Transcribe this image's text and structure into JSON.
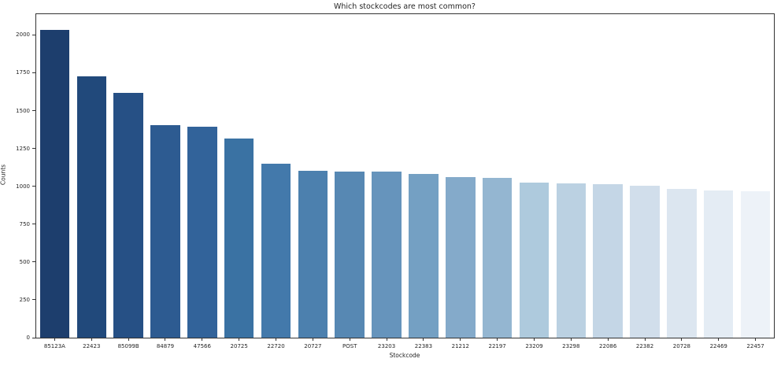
{
  "chart_data": {
    "type": "bar",
    "title": "Which stockcodes are most common?",
    "xlabel": "Stockcode",
    "ylabel": "Counts",
    "categories": [
      "85123A",
      "22423",
      "85099B",
      "84879",
      "47566",
      "20725",
      "22720",
      "20727",
      "POST",
      "23203",
      "22383",
      "21212",
      "22197",
      "23209",
      "23298",
      "22086",
      "22382",
      "20728",
      "22469",
      "22457"
    ],
    "values": [
      2035,
      1725,
      1618,
      1405,
      1395,
      1316,
      1151,
      1103,
      1097,
      1095,
      1082,
      1060,
      1056,
      1026,
      1021,
      1016,
      1004,
      982,
      974,
      969
    ],
    "bar_colors": [
      "#1d3e6d",
      "#21497b",
      "#265085",
      "#2d5b91",
      "#32639a",
      "#3a72a3",
      "#4379ab",
      "#4c80ae",
      "#5788b3",
      "#6694bc",
      "#74a0c3",
      "#84aaca",
      "#94b6d1",
      "#aecadd",
      "#bbd1e2",
      "#c4d6e6",
      "#d1deeb",
      "#dce6f0",
      "#e4ecf4",
      "#edf2f8"
    ],
    "ylim": [
      0,
      2137
    ],
    "yticks": [
      0,
      250,
      500,
      750,
      1000,
      1250,
      1500,
      1750,
      2000
    ],
    "grid": false,
    "legend_position": "none",
    "bar_width_fraction": 0.8
  },
  "style": {
    "axis_color": "#333333",
    "text_color": "#262626",
    "background": "#ffffff"
  }
}
